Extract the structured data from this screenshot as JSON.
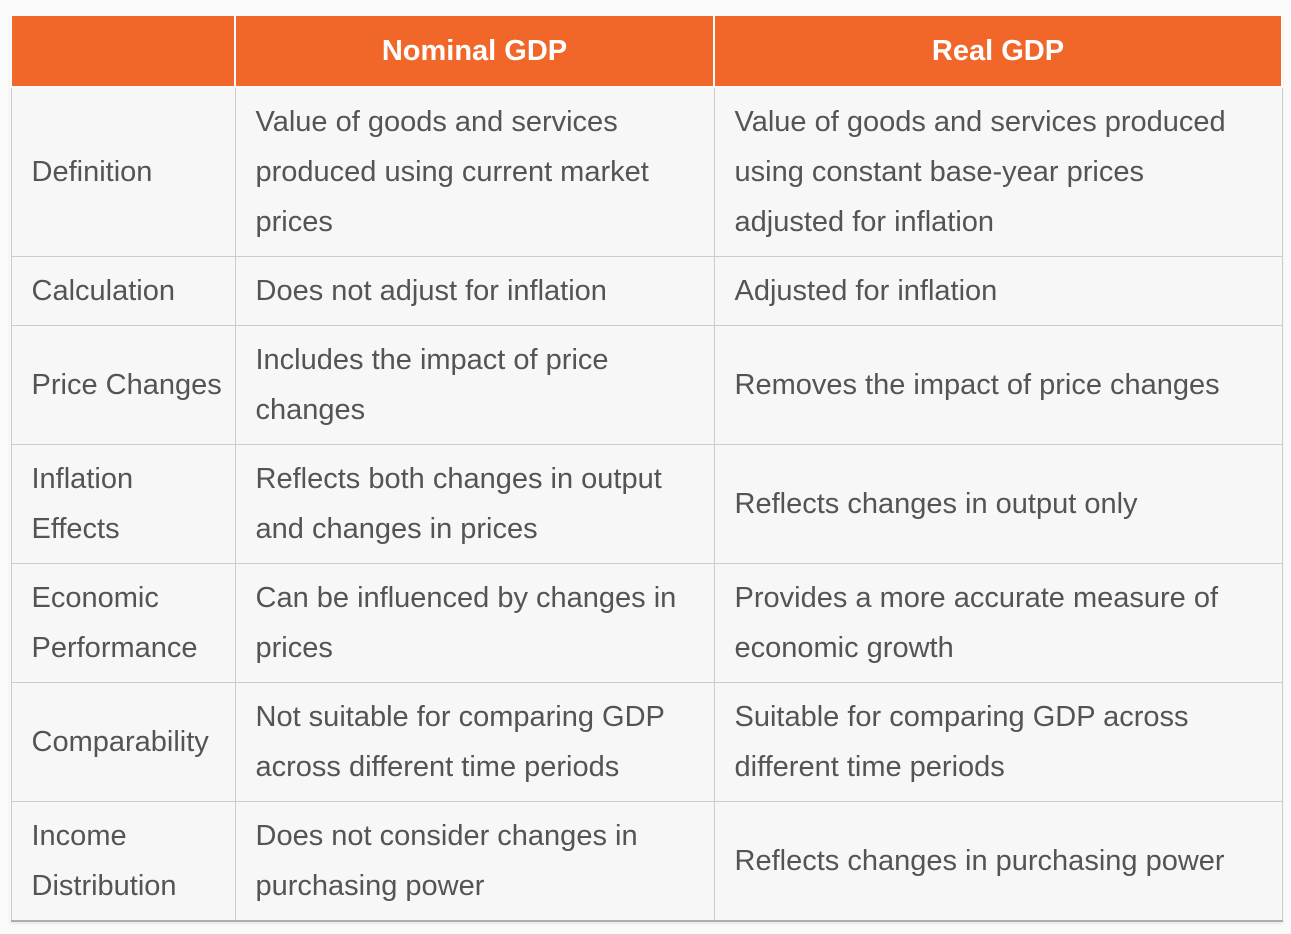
{
  "colors": {
    "header_bg": "#F1672A",
    "header_text": "#FFFFFF",
    "cell_bg": "#F7F7F7",
    "page_bg": "#FAFAFA",
    "border": "#CCCCCC",
    "text": "#545454",
    "bottom_edge": "#ADADAD"
  },
  "table": {
    "columns": [
      "",
      "Nominal GDP",
      "Real GDP"
    ],
    "rows": [
      {
        "label": "Definition",
        "nominal": "Value of goods and services produced using current market prices",
        "real": "Value of goods and services produced using constant base-year prices adjusted for inflation"
      },
      {
        "label": "Calculation",
        "nominal": "Does not adjust for inflation",
        "real": "Adjusted for inflation"
      },
      {
        "label": "Price Changes",
        "nominal": "Includes the impact of price changes",
        "real": "Removes the impact of price changes"
      },
      {
        "label": "Inflation Effects",
        "nominal": "Reflects both changes in output and changes in prices",
        "real": "Reflects changes in output only"
      },
      {
        "label": "Economic Performance",
        "nominal": "Can be influenced by changes in prices",
        "real": "Provides a more accurate measure of economic growth"
      },
      {
        "label": "Comparability",
        "nominal": "Not suitable for comparing GDP across different time periods",
        "real": "Suitable for comparing GDP across different time periods"
      },
      {
        "label": "Income Distribution",
        "nominal": "Does not consider changes in purchasing power",
        "real": "Reflects changes in purchasing power"
      }
    ]
  }
}
